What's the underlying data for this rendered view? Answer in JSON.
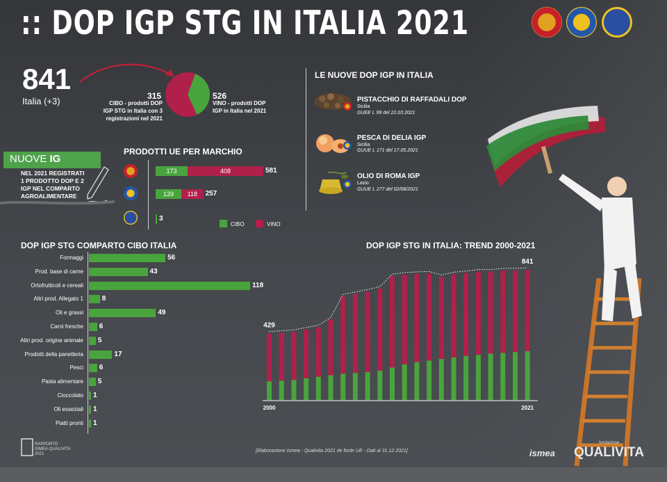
{
  "header": {
    "title": ":: DOP IGP STG IN ITALIA 2021",
    "logos": [
      "dop-seal-icon",
      "igp-seal-icon",
      "stg-seal-icon"
    ]
  },
  "summary": {
    "total": "841",
    "total_sub": "Italia (+3)",
    "cibo_num": "315",
    "cibo_text": [
      "CIBO - prodotti DOP",
      "IGP STG in Italia con 3",
      "registrazioni nel 2021"
    ],
    "vino_num": "526",
    "vino_text": [
      "VINO - prodotti DOP",
      "IGP in Italia nel 2021"
    ]
  },
  "nuove_ig": {
    "label_prefix": "NUOVE ",
    "label_bold": "IG",
    "desc": [
      "NEL 2021 REGISTRATI",
      "1 PRODOTTO DOP E 2",
      "IGP NEL COMPARTO",
      "AGROALIMENTARE"
    ]
  },
  "colors": {
    "cibo": "#4aa43d",
    "vino": "#b0204a"
  },
  "chart_data": [
    {
      "type": "pie",
      "title": "",
      "categories": [
        "CIBO",
        "VINO"
      ],
      "values": [
        315,
        526
      ]
    },
    {
      "type": "bar",
      "title": "PRODOTTI UE PER MARCHIO",
      "categories": [
        "DOP",
        "IGP",
        "STG"
      ],
      "series": [
        {
          "name": "CIBO",
          "values": [
            173,
            139,
            3
          ]
        },
        {
          "name": "VINO",
          "values": [
            408,
            118,
            0
          ]
        }
      ],
      "totals": [
        "581",
        "257",
        "3"
      ],
      "legend": [
        "CIBO",
        "VINO"
      ],
      "legend_position": "bottom-right"
    },
    {
      "type": "bar",
      "title": "DOP IGP STG COMPARTO CIBO ITALIA",
      "orientation": "horizontal",
      "categories": [
        "Formaggi",
        "Prod. base di carne",
        "Ortofrutticoli e cereali",
        "Altri prod. Allegato 1",
        "Oli e grassi",
        "Carni fresche",
        "Altri prod. origine animale",
        "Prodotti della panetteria",
        "Pesci",
        "Pasta alimentare",
        "Cioccolato",
        "Oli esseziali",
        "Piatti pronti"
      ],
      "values": [
        56,
        43,
        118,
        8,
        49,
        6,
        5,
        17,
        6,
        5,
        1,
        1,
        1
      ]
    },
    {
      "type": "bar",
      "stacked": true,
      "title": "DOP IGP STG IN ITALIA: TREND 2000-2021",
      "x_labels": [
        "2000",
        "2021"
      ],
      "x": [
        2000,
        2001,
        2002,
        2003,
        2004,
        2005,
        2006,
        2007,
        2008,
        2009,
        2010,
        2011,
        2012,
        2013,
        2014,
        2015,
        2016,
        2017,
        2018,
        2019,
        2020,
        2021
      ],
      "series": [
        {
          "name": "CIBO",
          "values": [
            120,
            125,
            130,
            140,
            150,
            160,
            170,
            175,
            180,
            190,
            210,
            230,
            245,
            255,
            265,
            275,
            285,
            292,
            300,
            305,
            310,
            315
          ]
        },
        {
          "name": "VINO",
          "values": [
            309,
            309,
            310,
            315,
            320,
            360,
            500,
            510,
            520,
            530,
            590,
            580,
            570,
            563,
            530,
            538,
            535,
            538,
            530,
            533,
            528,
            526
          ]
        }
      ],
      "totals_labeled": {
        "2000": "429",
        "2021": "841"
      },
      "ylim": [
        0,
        900
      ]
    }
  ],
  "nuove_dop_igp": {
    "title": "LE NUOVE DOP IGP IN ITALIA",
    "items": [
      {
        "name": "PISTACCHIO DI RAFFADALI DOP",
        "region": "Sicilia",
        "gu": "GUEE L 99 del 22.03.2021",
        "icon": "pistachio-icon"
      },
      {
        "name": "PESCA DI DELIA IGP",
        "region": "Sicilia",
        "gu": "GUUE L 171 del 17.05.2021",
        "icon": "peach-icon"
      },
      {
        "name": "OLIO DI ROMA IGP",
        "region": "Lazio",
        "gu": "GUUE L 277 del 02/08/2021",
        "icon": "olive-oil-icon"
      }
    ]
  },
  "footer": {
    "source": "[Elaborazione Ismea - Qualivita 2021 de fonte UE - Dati al 31.12.2021]",
    "report_label": [
      "RAPPORTO",
      "ISMEA-QUALIVITA",
      "2021"
    ],
    "ismea": "ismea",
    "qualivita_top": "fondazione",
    "qualivita": "QUALIVITA"
  }
}
